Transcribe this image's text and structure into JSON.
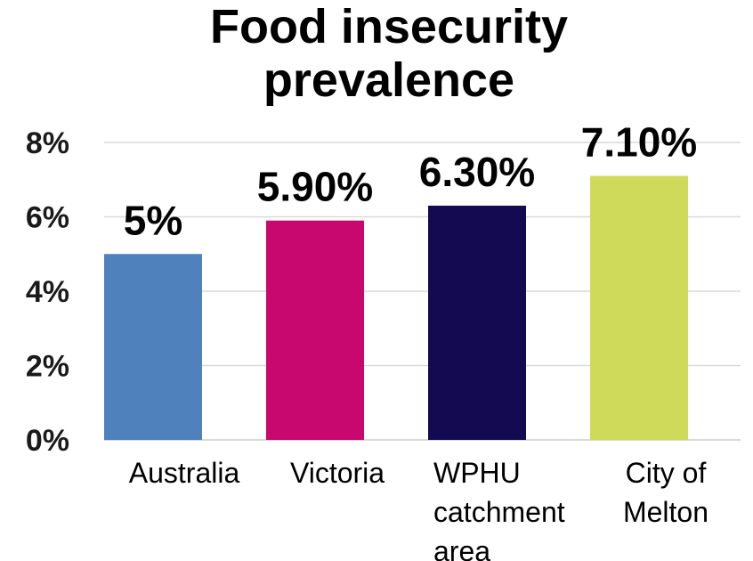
{
  "chart_data": {
    "type": "bar",
    "title": "Food insecurity prevalence",
    "title_lines": [
      "Food insecurity",
      "prevalence"
    ],
    "categories": [
      [
        "Australia"
      ],
      [
        "Victoria"
      ],
      [
        "WPHU",
        "catchment",
        "area"
      ],
      [
        "City of",
        "Melton"
      ]
    ],
    "values": [
      5,
      5.9,
      6.3,
      7.1
    ],
    "data_labels": [
      "5%",
      "5.90%",
      "6.30%",
      "7.10%"
    ],
    "bar_colors": [
      "#4f81bd",
      "#c8086e",
      "#140a52",
      "#cfd95a"
    ],
    "ylim": [
      0,
      8
    ],
    "yticks": [
      0,
      2,
      4,
      6,
      8
    ],
    "ytick_labels": [
      "0%",
      "2%",
      "4%",
      "6%",
      "8%"
    ],
    "grid": true,
    "xlabel": "",
    "ylabel": ""
  }
}
